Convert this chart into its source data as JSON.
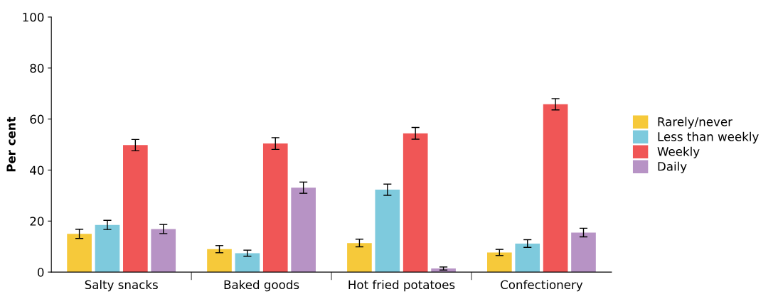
{
  "chart_data": {
    "type": "bar",
    "ylabel": "Per cent",
    "categories": [
      "Salty snacks",
      "Baked goods",
      "Hot fried potatoes",
      "Confectionery"
    ],
    "series": [
      {
        "name": "Rarely/never",
        "color": "#f6c93a",
        "values": [
          15,
          9,
          11.4,
          7.7
        ],
        "errors": [
          1.8,
          1.4,
          1.5,
          1.2
        ]
      },
      {
        "name": "Less than weekly",
        "color": "#7ecadd",
        "values": [
          18.5,
          7.4,
          32.3,
          11.2
        ],
        "errors": [
          1.8,
          1.2,
          2.2,
          1.5
        ]
      },
      {
        "name": "Weekly",
        "color": "#f05656",
        "values": [
          49.8,
          50.4,
          54.4,
          65.8
        ],
        "errors": [
          2.2,
          2.3,
          2.3,
          2.2
        ]
      },
      {
        "name": "Daily",
        "color": "#b793c5",
        "values": [
          16.9,
          33.1,
          1.4,
          15.5
        ],
        "errors": [
          1.8,
          2.2,
          0.6,
          1.7
        ]
      }
    ],
    "ylim": [
      0,
      100
    ],
    "yticks": [
      0,
      20,
      40,
      60,
      80,
      100
    ],
    "grid": false,
    "legend": "right"
  }
}
